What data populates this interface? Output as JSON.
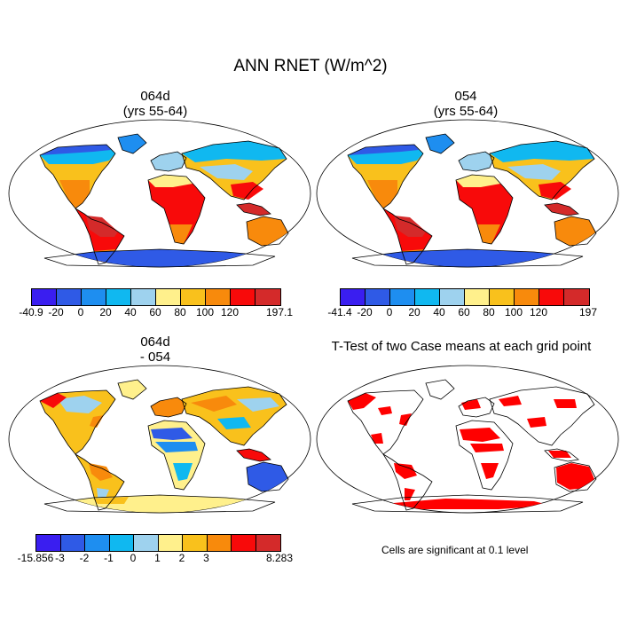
{
  "title": "ANN RNET (W/m^2)",
  "panels": [
    {
      "id": "p1",
      "title_line1": "064d",
      "title_line2": "(yrs 55-64)"
    },
    {
      "id": "p2",
      "title_line1": "054",
      "title_line2": "(yrs 55-64)"
    },
    {
      "id": "p3",
      "title_line1": "064d",
      "title_line2": "- 054"
    },
    {
      "id": "p4",
      "title_line1": "T-Test of two Case means at each grid point",
      "title_line2": ""
    }
  ],
  "colorbars": {
    "cb1": {
      "colors": [
        "#3a1ef0",
        "#2f5ae6",
        "#1e8ef0",
        "#10b8f0",
        "#9ed2ee",
        "#fff08c",
        "#f9c11c",
        "#f88a0c",
        "#f80a0a",
        "#d42a2a"
      ],
      "ticks": [
        "-40.9",
        "-20",
        "0",
        "20",
        "40",
        "60",
        "80",
        "100",
        "120",
        "197.1"
      ]
    },
    "cb2": {
      "colors": [
        "#3a1ef0",
        "#2f5ae6",
        "#1e8ef0",
        "#10b8f0",
        "#9ed2ee",
        "#fff08c",
        "#f9c11c",
        "#f88a0c",
        "#f80a0a",
        "#d42a2a"
      ],
      "ticks": [
        "-41.4",
        "-20",
        "0",
        "20",
        "40",
        "60",
        "80",
        "100",
        "120",
        "197"
      ]
    },
    "cb3": {
      "colors": [
        "#3a1ef0",
        "#2f5ae6",
        "#1e8ef0",
        "#10b8f0",
        "#9ed2ee",
        "#fff08c",
        "#f9c11c",
        "#f88a0c",
        "#f80a0a",
        "#d42a2a"
      ],
      "ticks": [
        "-15.856",
        "-3",
        "-2",
        "-1",
        "0",
        "1",
        "2",
        "3",
        "8.283"
      ]
    }
  },
  "note": "Cells are significant at 0.1 level",
  "significance_color": "#ff0000"
}
